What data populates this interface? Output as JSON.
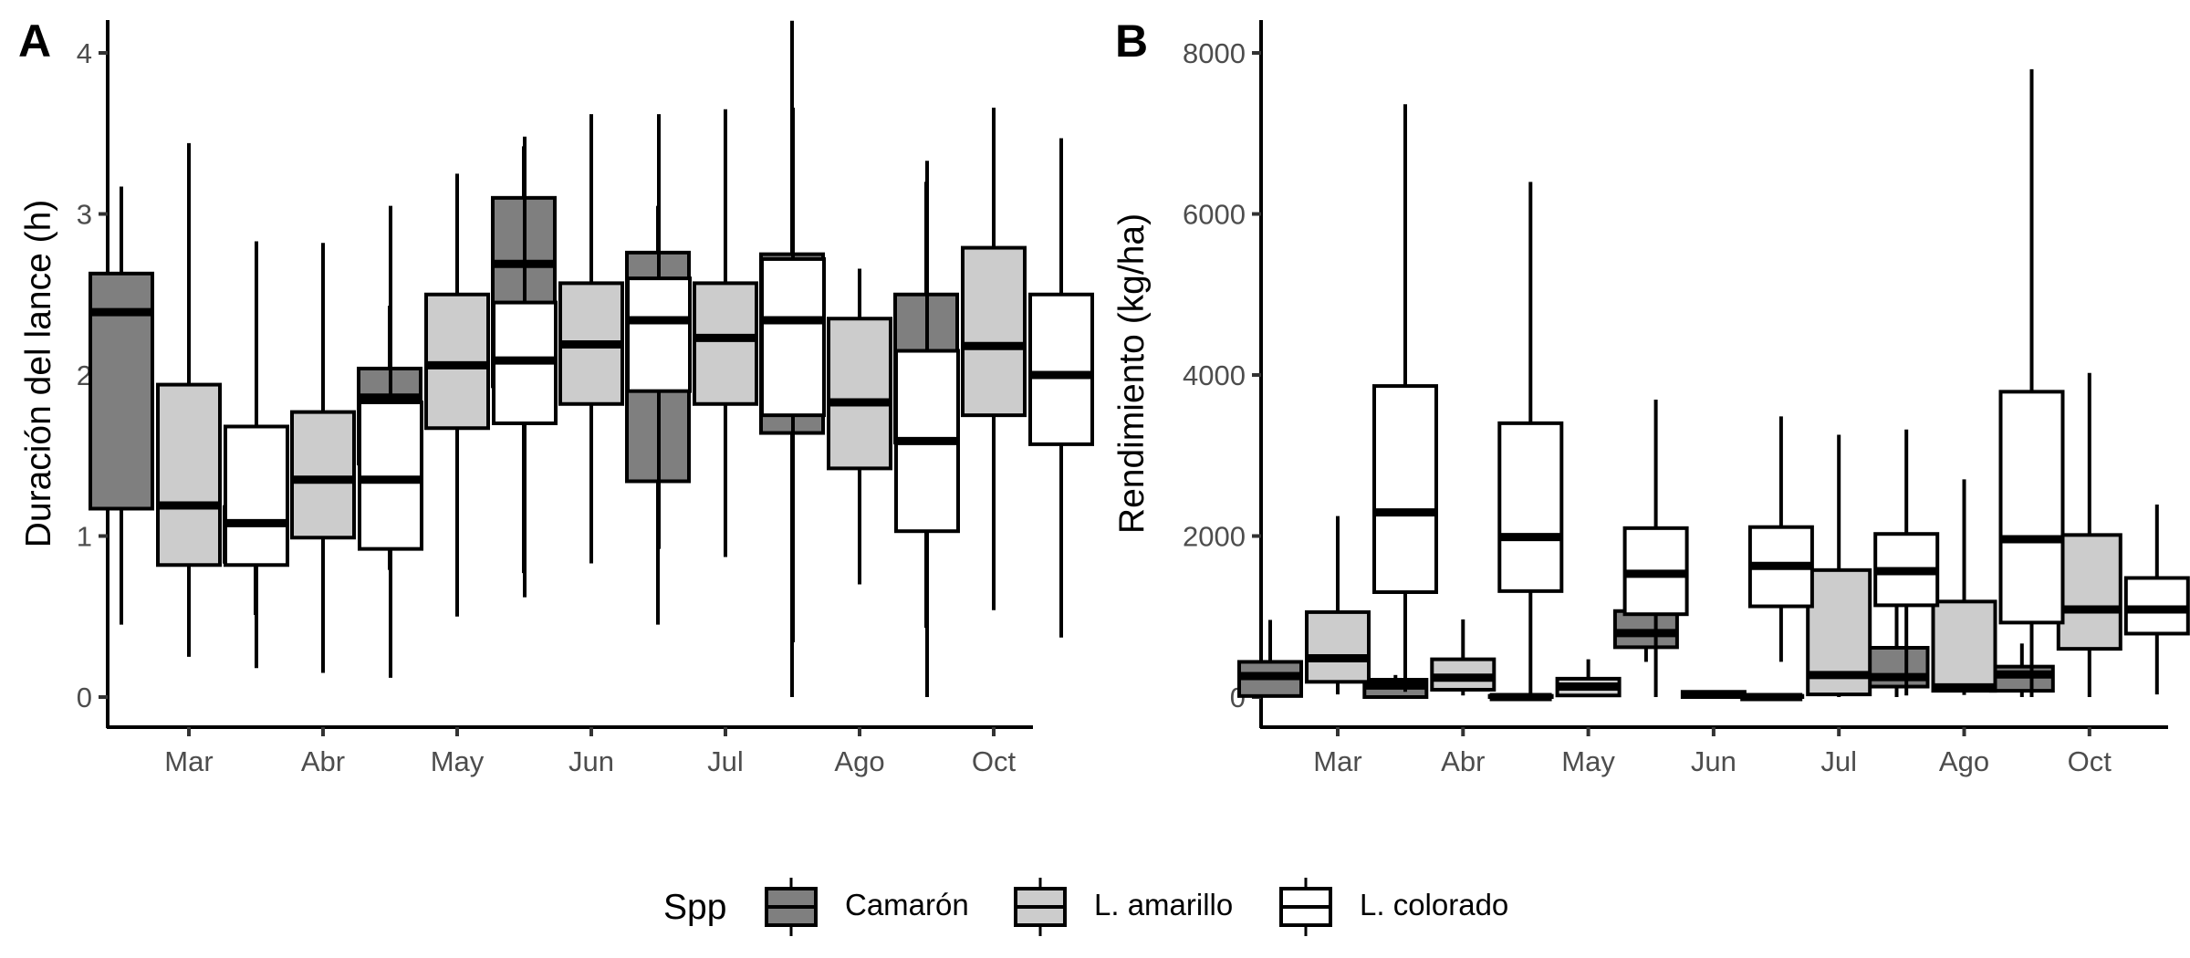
{
  "chart_data": [
    {
      "type": "boxplot",
      "panel": "A",
      "title": "",
      "xlabel": "",
      "ylabel": "Duración del lance (h)",
      "ylim": [
        -0.2,
        4.2
      ],
      "yticks": [
        0,
        1,
        2,
        3,
        4
      ],
      "ytick_labels": [
        "0",
        "1",
        "2",
        "3",
        "4"
      ],
      "categories": [
        "Mar",
        "Abr",
        "May",
        "Jun",
        "Jul",
        "Ago",
        "Oct"
      ],
      "grid": false,
      "series": [
        {
          "name": "Camarón",
          "boxes": [
            {
              "min": 0.45,
              "q1": 1.17,
              "median": 2.39,
              "q3": 2.63,
              "max": 3.17
            },
            {
              "min": 0.51,
              "q1": 0.84,
              "median": 1.03,
              "q3": 1.18,
              "max": 1.28
            },
            {
              "min": 0.79,
              "q1": 1.45,
              "median": 1.86,
              "q3": 2.04,
              "max": 2.43
            },
            {
              "min": 0.77,
              "q1": 1.93,
              "median": 2.69,
              "q3": 3.1,
              "max": 3.42
            },
            {
              "min": 0.45,
              "q1": 1.34,
              "median": 2.42,
              "q3": 2.76,
              "max": 3.05
            },
            {
              "min": 0.0,
              "q1": 1.64,
              "median": 2.51,
              "q3": 2.75,
              "max": 4.2
            },
            {
              "min": 0.43,
              "q1": 1.58,
              "median": 2.12,
              "q3": 2.5,
              "max": 3.2
            }
          ]
        },
        {
          "name": "L. amarillo",
          "boxes": [
            {
              "min": 0.25,
              "q1": 0.82,
              "median": 1.19,
              "q3": 1.94,
              "max": 3.44
            },
            {
              "min": 0.15,
              "q1": 0.99,
              "median": 1.35,
              "q3": 1.77,
              "max": 2.82
            },
            {
              "min": 0.5,
              "q1": 1.67,
              "median": 2.06,
              "q3": 2.5,
              "max": 3.25
            },
            {
              "min": 0.83,
              "q1": 1.82,
              "median": 2.19,
              "q3": 2.57,
              "max": 3.62
            },
            {
              "min": 0.87,
              "q1": 1.82,
              "median": 2.23,
              "q3": 2.57,
              "max": 3.65
            },
            {
              "min": 0.7,
              "q1": 1.42,
              "median": 1.83,
              "q3": 2.35,
              "max": 2.66
            },
            {
              "min": 0.54,
              "q1": 1.75,
              "median": 2.18,
              "q3": 2.79,
              "max": 3.66
            }
          ]
        },
        {
          "name": "L. colorado",
          "boxes": [
            {
              "min": 0.18,
              "q1": 0.82,
              "median": 1.08,
              "q3": 1.68,
              "max": 2.83
            },
            {
              "min": 0.12,
              "q1": 0.92,
              "median": 1.35,
              "q3": 1.83,
              "max": 3.05
            },
            {
              "min": 0.62,
              "q1": 1.7,
              "median": 2.09,
              "q3": 2.45,
              "max": 3.48
            },
            {
              "min": 0.92,
              "q1": 1.9,
              "median": 2.34,
              "q3": 2.6,
              "max": 3.62
            },
            {
              "min": 0.34,
              "q1": 1.75,
              "median": 2.34,
              "q3": 2.72,
              "max": 3.66
            },
            {
              "min": 0.0,
              "q1": 1.03,
              "median": 1.59,
              "q3": 2.15,
              "max": 3.33
            },
            {
              "min": 0.37,
              "q1": 1.57,
              "median": 2.0,
              "q3": 2.5,
              "max": 3.47
            }
          ]
        }
      ]
    },
    {
      "type": "boxplot",
      "panel": "B",
      "title": "",
      "xlabel": "",
      "ylabel": "Rendimiento (kg/ha)",
      "ylim": [
        -400,
        8400
      ],
      "yticks": [
        0,
        2000,
        4000,
        6000,
        8000
      ],
      "ytick_labels": [
        "0",
        "2000",
        "4000",
        "6000",
        "8000"
      ],
      "categories": [
        "Mar",
        "Abr",
        "May",
        "Jun",
        "Jul",
        "Ago",
        "Oct"
      ],
      "grid": false,
      "series": [
        {
          "name": "Camarón",
          "boxes": [
            {
              "min": 0,
              "q1": 13,
              "median": 261,
              "q3": 437,
              "max": 958
            },
            {
              "min": 0,
              "q1": 0,
              "median": 143,
              "q3": 215,
              "max": 274
            },
            {
              "min": 0,
              "q1": 0,
              "median": 0,
              "q3": 15,
              "max": 20
            },
            {
              "min": 437,
              "q1": 619,
              "median": 795,
              "q3": 1068,
              "max": 1068
            },
            {
              "min": 0,
              "q1": 0,
              "median": 0,
              "q3": 15,
              "max": 20
            },
            {
              "min": 0,
              "q1": 130,
              "median": 248,
              "q3": 612,
              "max": 1270
            },
            {
              "min": 0,
              "q1": 78,
              "median": 280,
              "q3": 378,
              "max": 665
            }
          ]
        },
        {
          "name": "L. amarillo",
          "boxes": [
            {
              "min": 33,
              "q1": 189,
              "median": 482,
              "q3": 1055,
              "max": 2248
            },
            {
              "min": 20,
              "q1": 91,
              "median": 241,
              "q3": 469,
              "max": 964
            },
            {
              "min": 0,
              "q1": 20,
              "median": 130,
              "q3": 228,
              "max": 469
            },
            {
              "min": 0,
              "q1": 0,
              "median": 33,
              "q3": 65,
              "max": 78
            },
            {
              "min": 0,
              "q1": 33,
              "median": 274,
              "q3": 1577,
              "max": 3258
            },
            {
              "min": 26,
              "q1": 78,
              "median": 120,
              "q3": 1186,
              "max": 2704
            },
            {
              "min": 0,
              "q1": 599,
              "median": 1088,
              "q3": 2013,
              "max": 4026
            }
          ]
        },
        {
          "name": "L. colorado",
          "boxes": [
            {
              "min": 65,
              "q1": 1303,
              "median": 2293,
              "q3": 3863,
              "max": 7362
            },
            {
              "min": 33,
              "q1": 1316,
              "median": 1987,
              "q3": 3401,
              "max": 6398
            },
            {
              "min": 0,
              "q1": 1029,
              "median": 1531,
              "q3": 2098,
              "max": 3694
            },
            {
              "min": 437,
              "q1": 1127,
              "median": 1629,
              "q3": 2111,
              "max": 3486
            },
            {
              "min": 20,
              "q1": 1140,
              "median": 1564,
              "q3": 2026,
              "max": 3323
            },
            {
              "min": 0,
              "q1": 925,
              "median": 1961,
              "q3": 3792,
              "max": 7798
            },
            {
              "min": 33,
              "q1": 788,
              "median": 1088,
              "q3": 1479,
              "max": 2391
            }
          ]
        }
      ]
    }
  ],
  "legend": {
    "title": "Spp",
    "position": "bottom",
    "entries": [
      {
        "label": "Camarón",
        "fill": "#7f7f7f"
      },
      {
        "label": "L. amarillo",
        "fill": "#cccccc"
      },
      {
        "label": "L. colorado",
        "fill": "#ffffff"
      }
    ]
  },
  "colors": {
    "series": [
      "#7f7f7f",
      "#cccccc",
      "#ffffff"
    ],
    "stroke": "#000000"
  }
}
